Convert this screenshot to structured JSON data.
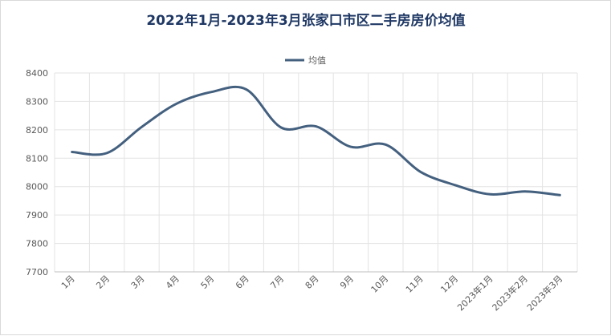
{
  "chart_data": {
    "type": "line",
    "title": "2022年1月-2023年3月张家口市区二手房房价均值",
    "xlabel": "",
    "ylabel": "",
    "categories": [
      "1月",
      "2月",
      "3月",
      "4月",
      "5月",
      "6月",
      "7月",
      "8月",
      "9月",
      "10月",
      "11月",
      "12月",
      "2023年1月",
      "2023年2月",
      "2023年3月"
    ],
    "series": [
      {
        "name": "均值",
        "values": [
          8122,
          8118,
          8210,
          8292,
          8333,
          8342,
          8208,
          8212,
          8140,
          8148,
          8052,
          8005,
          7973,
          7983,
          7970
        ],
        "color": "#44607f"
      }
    ],
    "ylim": [
      7700,
      8400
    ],
    "yticks": [
      8400,
      8300,
      8200,
      8100,
      8000,
      7900,
      7800,
      7700
    ],
    "grid": true,
    "legend": "top"
  }
}
